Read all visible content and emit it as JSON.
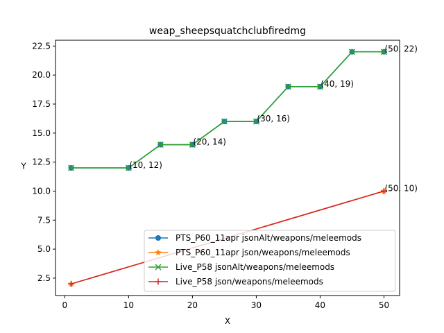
{
  "chart_data": {
    "type": "line",
    "title": "weap_sheepsquatchclubfiredmg",
    "xlabel": "X",
    "ylabel": "Y",
    "xlim": [
      -1.45,
      52.45
    ],
    "ylim": [
      1.0,
      23.0
    ],
    "xticks": [
      0,
      10,
      20,
      30,
      40,
      50
    ],
    "yticks": [
      2.5,
      5.0,
      7.5,
      10.0,
      12.5,
      15.0,
      17.5,
      20.0,
      22.5
    ],
    "ytick_labels": [
      "2.5",
      "5.0",
      "7.5",
      "10.0",
      "12.5",
      "15.0",
      "17.5",
      "20.0",
      "22.5"
    ],
    "grid": false,
    "legend_position": "lower-right",
    "series": [
      {
        "name": "PTS_P60_11apr jsonAlt/weapons/meleemods",
        "color": "#1f77b4",
        "marker": "circle",
        "x": [
          1,
          10,
          15,
          20,
          25,
          30,
          35,
          40,
          45,
          50
        ],
        "y": [
          12,
          12,
          14,
          14,
          16,
          16,
          19,
          19,
          22,
          22
        ]
      },
      {
        "name": "PTS_P60_11apr json/weapons/meleemods",
        "color": "#ff7f0e",
        "marker": "star",
        "x": [
          1,
          50
        ],
        "y": [
          2,
          10
        ]
      },
      {
        "name": "Live_P58 jsonAlt/weapons/meleemods",
        "color": "#2ca02c",
        "marker": "x",
        "x": [
          1,
          10,
          15,
          20,
          25,
          30,
          35,
          40,
          45,
          50
        ],
        "y": [
          12,
          12,
          14,
          14,
          16,
          16,
          19,
          19,
          22,
          22
        ]
      },
      {
        "name": "Live_P58 json/weapons/meleemods",
        "color": "#d62728",
        "marker": "plus",
        "x": [
          1,
          50
        ],
        "y": [
          2,
          10
        ]
      }
    ],
    "annotations": [
      {
        "x": 10,
        "y": 12,
        "text": "(10, 12)"
      },
      {
        "x": 20,
        "y": 14,
        "text": "(20, 14)"
      },
      {
        "x": 30,
        "y": 16,
        "text": "(30, 16)"
      },
      {
        "x": 40,
        "y": 19,
        "text": "(40, 19)"
      },
      {
        "x": 50,
        "y": 22,
        "text": "(50, 22)"
      },
      {
        "x": 50,
        "y": 10,
        "text": "(50, 10)"
      }
    ]
  }
}
